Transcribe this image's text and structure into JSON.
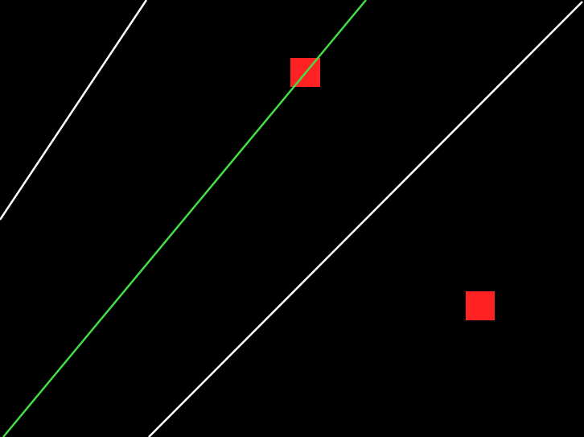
{
  "colors": {
    "background": "#000000",
    "boundary_line": "#ffffff",
    "guide_line": "#44dd44",
    "target": "#ff2222"
  },
  "objects": {
    "lines": [
      {
        "name": "white-line-left",
        "color": "boundary_line"
      },
      {
        "name": "green-line",
        "color": "guide_line"
      },
      {
        "name": "white-line-right",
        "color": "boundary_line"
      }
    ],
    "targets": [
      {
        "name": "red-square-upper",
        "color": "target"
      },
      {
        "name": "red-square-lower",
        "color": "target"
      }
    ]
  }
}
